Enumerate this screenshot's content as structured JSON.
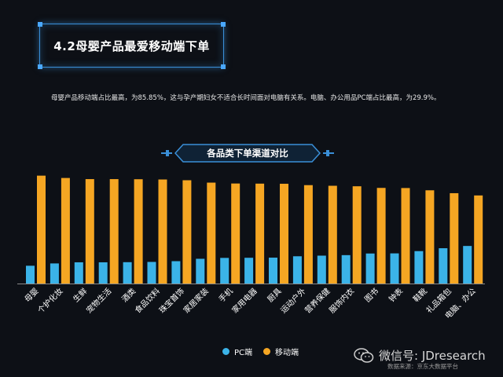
{
  "header": {
    "title": "4.2母婴产品最爱移动端下单",
    "description": "母婴产品移动端占比最高，为85.85%，这与孕产期妇女不适合长时间面对电脑有关系。电脑、办公用品PC端占比最高，为29.9%。"
  },
  "chart_badge": "各品类下单渠道对比",
  "legend": {
    "pc": "PC端",
    "mobile": "移动端"
  },
  "footer": {
    "wechat": "微信号: JDresearch",
    "source": "数据来源：京东大数据平台"
  },
  "colors": {
    "pc": "#3bb3e8",
    "mobile": "#f5a623",
    "accent": "#3a8fd8",
    "background": "#0d1016"
  },
  "chart_data": {
    "type": "bar",
    "title": "各品类下单渠道对比",
    "categories": [
      "母婴",
      "个护化妆",
      "生鲜",
      "宠物生活",
      "酒类",
      "食品饮料",
      "珠宝首饰",
      "家居家装",
      "手机",
      "家用电器",
      "厨具",
      "运动户外",
      "营养保健",
      "服饰内衣",
      "图书",
      "钟表",
      "鞋靴",
      "礼品箱包",
      "电脑、办公"
    ],
    "series": [
      {
        "name": "PC端",
        "values": [
          14.15,
          16.0,
          16.9,
          16.9,
          17.0,
          17.2,
          17.8,
          19.7,
          20.4,
          20.5,
          20.6,
          21.7,
          22.2,
          22.6,
          23.9,
          24.0,
          25.8,
          28.1,
          29.9
        ]
      },
      {
        "name": "移动端",
        "values": [
          85.85,
          84.0,
          83.1,
          83.1,
          83.0,
          82.8,
          82.2,
          80.3,
          79.6,
          79.5,
          79.4,
          78.3,
          77.8,
          77.4,
          76.1,
          76.0,
          74.2,
          71.9,
          70.1
        ]
      }
    ],
    "ylim": [
      0,
      90
    ],
    "grid": false,
    "legend_position": "bottom"
  }
}
